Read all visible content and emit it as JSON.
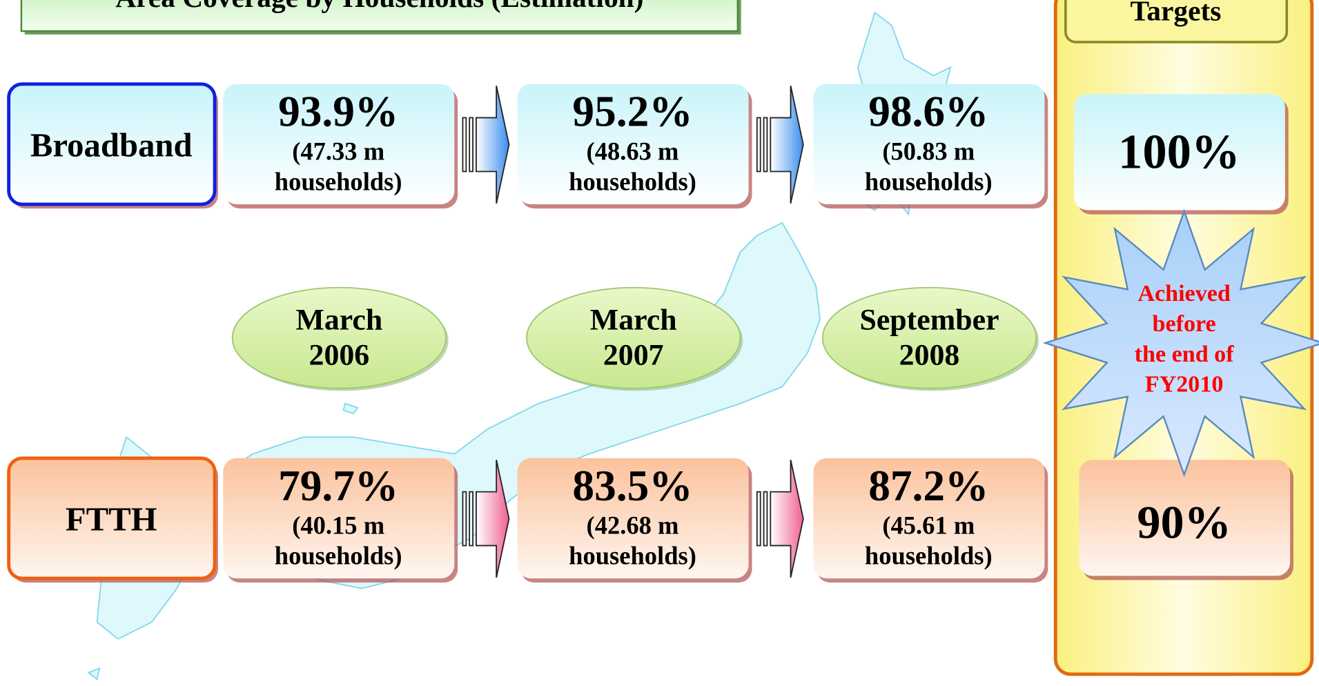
{
  "title": "Area Coverage by Households (Estimation)",
  "targets_heading": "Targets",
  "dates": [
    [
      "March",
      "2006"
    ],
    [
      "March",
      "2007"
    ],
    [
      "September",
      "2008"
    ]
  ],
  "rows": [
    {
      "label": "Broadband",
      "values": [
        {
          "percent": "93.9%",
          "households": [
            "(47.33 m",
            "households)"
          ]
        },
        {
          "percent": "95.2%",
          "households": [
            "(48.63 m",
            "households)"
          ]
        },
        {
          "percent": "98.6%",
          "households": [
            "(50.83 m",
            "households)"
          ]
        }
      ],
      "target": "100%"
    },
    {
      "label": "FTTH",
      "values": [
        {
          "percent": "79.7%",
          "households": [
            "(40.15 m",
            "households)"
          ]
        },
        {
          "percent": "83.5%",
          "households": [
            "(42.68 m",
            "households)"
          ]
        },
        {
          "percent": "87.2%",
          "households": [
            "(45.61 m",
            "households)"
          ]
        }
      ],
      "target": "90%"
    }
  ],
  "burst": [
    "Achieved",
    "before",
    "the end of",
    "FY2010"
  ]
}
